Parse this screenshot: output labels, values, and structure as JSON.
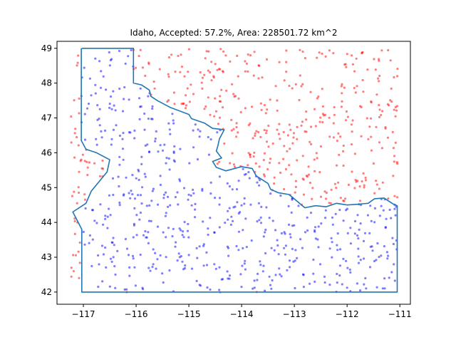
{
  "chart_data": {
    "type": "scatter",
    "title": "Idaho, Accepted: 57.2%, Area: 228501.72 km^2",
    "xlabel": "",
    "ylabel": "",
    "xlim": [
      -117.5,
      -110.8
    ],
    "ylim": [
      41.65,
      49.2
    ],
    "xticks": [
      -117,
      -116,
      -115,
      -114,
      -113,
      -112,
      -111
    ],
    "yticks": [
      42,
      43,
      44,
      45,
      46,
      47,
      48,
      49
    ],
    "grid": false,
    "sample_bounds": {
      "x": [
        -117.24,
        -111.04
      ],
      "y": [
        41.99,
        49.0
      ]
    },
    "series": [
      {
        "role": "accepted",
        "color": "#0000ff",
        "alpha": 0.5
      },
      {
        "role": "rejected",
        "color": "#ff0000",
        "alpha": 0.5
      }
    ],
    "boundary": {
      "color": "#1f77b4",
      "points": [
        [
          -117.03,
          49.0
        ],
        [
          -116.05,
          49.0
        ],
        [
          -116.05,
          48.0
        ],
        [
          -115.9,
          47.95
        ],
        [
          -115.75,
          47.8
        ],
        [
          -115.72,
          47.62
        ],
        [
          -115.6,
          47.5
        ],
        [
          -115.35,
          47.3
        ],
        [
          -115.0,
          47.1
        ],
        [
          -114.95,
          46.98
        ],
        [
          -114.7,
          46.85
        ],
        [
          -114.55,
          46.7
        ],
        [
          -114.33,
          46.66
        ],
        [
          -114.42,
          46.4
        ],
        [
          -114.45,
          46.2
        ],
        [
          -114.48,
          46.05
        ],
        [
          -114.38,
          45.85
        ],
        [
          -114.55,
          45.75
        ],
        [
          -114.48,
          45.58
        ],
        [
          -114.3,
          45.48
        ],
        [
          -114.0,
          45.6
        ],
        [
          -113.8,
          45.55
        ],
        [
          -113.72,
          45.33
        ],
        [
          -113.5,
          45.12
        ],
        [
          -113.45,
          44.95
        ],
        [
          -113.3,
          44.85
        ],
        [
          -113.1,
          44.8
        ],
        [
          -112.8,
          44.42
        ],
        [
          -112.6,
          44.48
        ],
        [
          -112.4,
          44.45
        ],
        [
          -112.2,
          44.55
        ],
        [
          -112.0,
          44.5
        ],
        [
          -111.8,
          44.52
        ],
        [
          -111.6,
          44.55
        ],
        [
          -111.48,
          44.68
        ],
        [
          -111.3,
          44.7
        ],
        [
          -111.13,
          44.53
        ],
        [
          -111.05,
          44.48
        ],
        [
          -111.05,
          42.0
        ],
        [
          -114.0,
          42.0
        ],
        [
          -117.03,
          42.0
        ],
        [
          -117.03,
          43.8
        ],
        [
          -117.2,
          44.3
        ],
        [
          -116.95,
          44.55
        ],
        [
          -116.85,
          44.9
        ],
        [
          -116.55,
          45.45
        ],
        [
          -116.5,
          45.8
        ],
        [
          -116.75,
          46.0
        ],
        [
          -116.95,
          46.1
        ],
        [
          -117.04,
          46.35
        ],
        [
          -117.04,
          49.0
        ]
      ]
    },
    "accepted_count": 572,
    "rejected_count": 428
  }
}
